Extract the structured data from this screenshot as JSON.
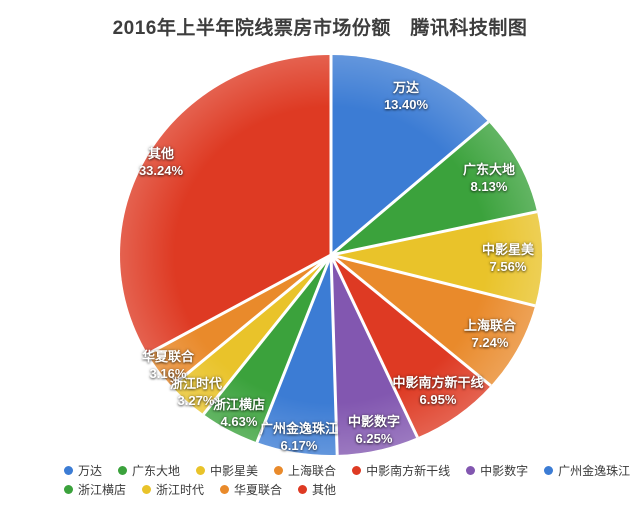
{
  "chart_data": {
    "type": "pie",
    "title": "2016年上半年院线票房市场份额　腾讯科技制图",
    "unit": "%",
    "start_angle_deg": 0,
    "direction": "clockwise",
    "background": "#ffffff",
    "separator_color": "#ffffff",
    "slices": [
      {
        "label": "万达",
        "value": 13.4,
        "color": "#3C7CD4",
        "label_r": 0.87
      },
      {
        "label": "广东大地",
        "value": 8.13,
        "color": "#3BA23C",
        "label_r": 0.84
      },
      {
        "label": "中影星美",
        "value": 7.56,
        "color": "#E9C32A",
        "label_r": 0.84
      },
      {
        "label": "上海联合",
        "value": 7.24,
        "color": "#E98A2B",
        "label_r": 0.85
      },
      {
        "label": "中影南方新干线",
        "value": 6.95,
        "color": "#DE3A23",
        "label_r": 0.85
      },
      {
        "label": "中影数字",
        "value": 6.25,
        "color": "#8257B0",
        "label_r": 0.9
      },
      {
        "label": "广州金逸珠江",
        "value": 6.17,
        "color": "#3C7CD4",
        "label_r": 0.92
      },
      {
        "label": "浙江横店",
        "value": 4.63,
        "color": "#3BA23C",
        "label_r": 0.9
      },
      {
        "label": "浙江时代",
        "value": 3.27,
        "color": "#E9C32A",
        "label_r": 0.94
      },
      {
        "label": "华夏联合",
        "value": 3.16,
        "color": "#E98A2B",
        "label_r": 0.95
      },
      {
        "label": "其他",
        "value": 33.24,
        "color": "#DE3A23",
        "label_r": 0.93
      }
    ],
    "legend": {
      "position": "bottom",
      "rows": [
        [
          0,
          1,
          2,
          3,
          4,
          5,
          6
        ],
        [
          7,
          8,
          9,
          10
        ]
      ]
    }
  }
}
